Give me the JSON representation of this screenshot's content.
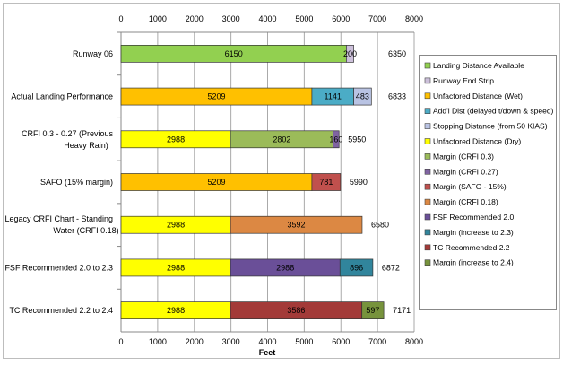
{
  "chart_data": {
    "type": "bar",
    "orientation": "horizontal",
    "stacked": true,
    "xlabel": "Feet",
    "xlim": [
      0,
      8000
    ],
    "xticks": [
      "0",
      "1000",
      "2000",
      "3000",
      "4000",
      "5000",
      "6000",
      "7000",
      "8000"
    ],
    "grid": true,
    "legend_position": "right",
    "series": [
      {
        "name": "Landing Distance Available",
        "color": "#92d050"
      },
      {
        "name": "Runway End Strip",
        "color": "#ccc0da"
      },
      {
        "name": "Unfactored Distance (Wet)",
        "color": "#ffc000"
      },
      {
        "name": "Add'l Dist (delayed t/down & speed)",
        "color": "#4bacc6"
      },
      {
        "name": "Stopping Distance (from 50 KIAS)",
        "color": "#b9c3e3"
      },
      {
        "name": "Unfactored Distance (Dry)",
        "color": "#ffff00"
      },
      {
        "name": "Margin (CRFI 0.3)",
        "color": "#9bbb59"
      },
      {
        "name": "Margin (CRFI 0.27)",
        "color": "#8064a2"
      },
      {
        "name": "Margin (SAFO - 15%)",
        "color": "#c0504d"
      },
      {
        "name": "Margin (CRFI 0.18)",
        "color": "#dc8843"
      },
      {
        "name": "FSF Recommended 2.0",
        "color": "#6a4f98"
      },
      {
        "name": "Margin (increase to 2.3)",
        "color": "#31859c"
      },
      {
        "name": "TC Recommended 2.2",
        "color": "#a33a38"
      },
      {
        "name": "Margin (increase to 2.4)",
        "color": "#77933c"
      }
    ],
    "categories": [
      {
        "label": [
          "Runway 06"
        ],
        "total": "6350",
        "segments": [
          {
            "s": 0,
            "v": 6150
          },
          {
            "s": 1,
            "v": 200
          }
        ]
      },
      {
        "label": [
          "Actual Landing Performance"
        ],
        "total": "6833",
        "segments": [
          {
            "s": 2,
            "v": 5209
          },
          {
            "s": 3,
            "v": 1141
          },
          {
            "s": 4,
            "v": 483
          }
        ]
      },
      {
        "label": [
          "CRFI 0.3 - 0.27 (Previous",
          "Heavy Rain)"
        ],
        "total": "5950",
        "segments": [
          {
            "s": 5,
            "v": 2988
          },
          {
            "s": 6,
            "v": 2802
          },
          {
            "s": 7,
            "v": 160
          }
        ]
      },
      {
        "label": [
          "SAFO (15% margin)"
        ],
        "total": "5990",
        "segments": [
          {
            "s": 2,
            "v": 5209
          },
          {
            "s": 8,
            "v": 781
          }
        ]
      },
      {
        "label": [
          "Legacy CRFI Chart - Standing",
          "Water (CRFI 0.18)"
        ],
        "total": "6580",
        "segments": [
          {
            "s": 5,
            "v": 2988
          },
          {
            "s": 9,
            "v": 3592
          }
        ]
      },
      {
        "label": [
          "FSF Recommended 2.0 to 2.3"
        ],
        "total": "6872",
        "segments": [
          {
            "s": 5,
            "v": 2988
          },
          {
            "s": 10,
            "v": 2988
          },
          {
            "s": 11,
            "v": 896
          }
        ]
      },
      {
        "label": [
          "TC Recommended 2.2 to 2.4"
        ],
        "total": "7171",
        "segments": [
          {
            "s": 5,
            "v": 2988
          },
          {
            "s": 12,
            "v": 3586
          },
          {
            "s": 13,
            "v": 597
          }
        ]
      }
    ]
  }
}
